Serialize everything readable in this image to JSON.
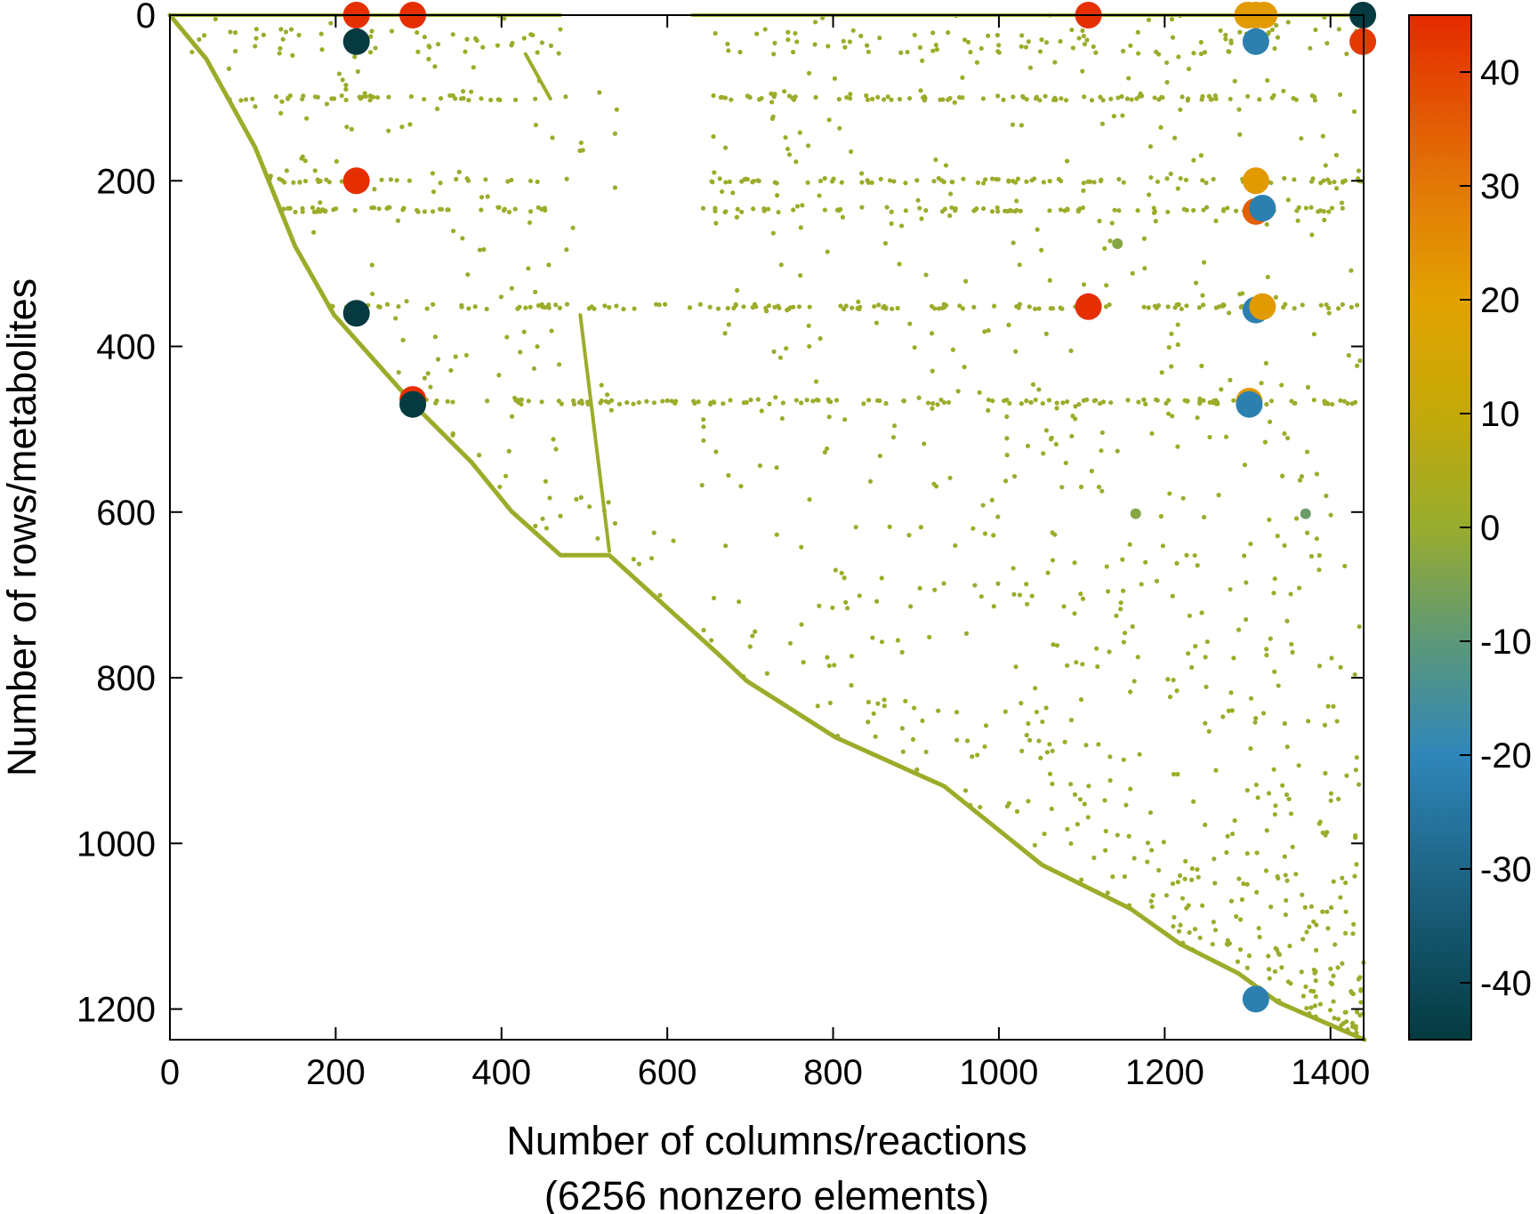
{
  "chart_data": {
    "type": "scatter",
    "subtype": "sparsity-pattern",
    "title": "",
    "xlabel": "Number of columns/reactions",
    "xlabel_line2": "(6256 nonzero elements)",
    "ylabel": "Number of rows/metabolites",
    "xlim": [
      0,
      1440
    ],
    "ylim": [
      1237,
      0
    ],
    "y_inverted": true,
    "grid": false,
    "x_ticks": [
      "0",
      "200",
      "400",
      "600",
      "800",
      "1000",
      "1200",
      "1400"
    ],
    "y_ticks": [
      "0",
      "200",
      "400",
      "600",
      "800",
      "1000",
      "1200"
    ],
    "colorbar": {
      "range": [
        -45,
        45
      ],
      "ticks": [
        "40",
        "30",
        "20",
        "10",
        "0",
        "-10",
        "-20",
        "-30",
        "-40"
      ],
      "stops": [
        {
          "v": -45,
          "color": "#043a40"
        },
        {
          "v": -30,
          "color": "#1f6688"
        },
        {
          "v": -20,
          "color": "#2f86ba"
        },
        {
          "v": -10,
          "color": "#5c9878"
        },
        {
          "v": 0,
          "color": "#98ac2e"
        },
        {
          "v": 10,
          "color": "#c4a908"
        },
        {
          "v": 20,
          "color": "#e2a200"
        },
        {
          "v": 30,
          "color": "#e27806"
        },
        {
          "v": 45,
          "color": "#e52a00"
        }
      ]
    },
    "small_marker_value": 1,
    "diagonal": [
      [
        0,
        0
      ],
      [
        44,
        53
      ],
      [
        103,
        160
      ],
      [
        151,
        279
      ],
      [
        198,
        362
      ],
      [
        293,
        469
      ],
      [
        364,
        540
      ],
      [
        412,
        599
      ],
      [
        471,
        652
      ],
      [
        530,
        652
      ],
      [
        661,
        771
      ],
      [
        696,
        804
      ],
      [
        803,
        872
      ],
      [
        934,
        931
      ],
      [
        1052,
        1026
      ],
      [
        1159,
        1079
      ],
      [
        1218,
        1121
      ],
      [
        1289,
        1157
      ],
      [
        1337,
        1192
      ],
      [
        1441,
        1237
      ]
    ],
    "extra_segments": [
      [
        [
          495,
          362
        ],
        [
          530,
          647
        ]
      ],
      [
        [
          429,
          47
        ],
        [
          459,
          101
        ]
      ],
      [
        [
          0,
          0
        ],
        [
          471,
          0
        ]
      ],
      [
        [
          630,
          0
        ],
        [
          1440,
          0
        ]
      ]
    ],
    "dense_rows": [
      0,
      32,
      100,
      200,
      235,
      352,
      467
    ],
    "large_points": [
      {
        "x": 225,
        "y": 0,
        "value": 44
      },
      {
        "x": 293,
        "y": 0,
        "value": 44
      },
      {
        "x": 1108,
        "y": 0,
        "value": 44
      },
      {
        "x": 1300,
        "y": 0,
        "value": 22
      },
      {
        "x": 1310,
        "y": 0,
        "value": 22
      },
      {
        "x": 1320,
        "y": 0,
        "value": 22
      },
      {
        "x": 1439,
        "y": 0,
        "value": -45
      },
      {
        "x": 1439,
        "y": 32,
        "value": 42
      },
      {
        "x": 225,
        "y": 32,
        "value": -45
      },
      {
        "x": 1310,
        "y": 32,
        "value": -22
      },
      {
        "x": 225,
        "y": 200,
        "value": 44
      },
      {
        "x": 1310,
        "y": 200,
        "value": 22
      },
      {
        "x": 1310,
        "y": 237,
        "value": 35
      },
      {
        "x": 1318,
        "y": 233,
        "value": -22
      },
      {
        "x": 225,
        "y": 360,
        "value": -45
      },
      {
        "x": 1108,
        "y": 352,
        "value": 44
      },
      {
        "x": 1310,
        "y": 356,
        "value": -22
      },
      {
        "x": 1318,
        "y": 352,
        "value": 22
      },
      {
        "x": 293,
        "y": 464,
        "value": 44
      },
      {
        "x": 293,
        "y": 470,
        "value": -45
      },
      {
        "x": 1302,
        "y": 466,
        "value": 22
      },
      {
        "x": 1302,
        "y": 470,
        "value": -22
      },
      {
        "x": 1310,
        "y": 1188,
        "value": -22
      },
      {
        "x": 1143,
        "y": 276,
        "value": -3
      },
      {
        "x": 1370,
        "y": 602,
        "value": -8
      },
      {
        "x": 1165,
        "y": 602,
        "value": -3
      }
    ]
  }
}
